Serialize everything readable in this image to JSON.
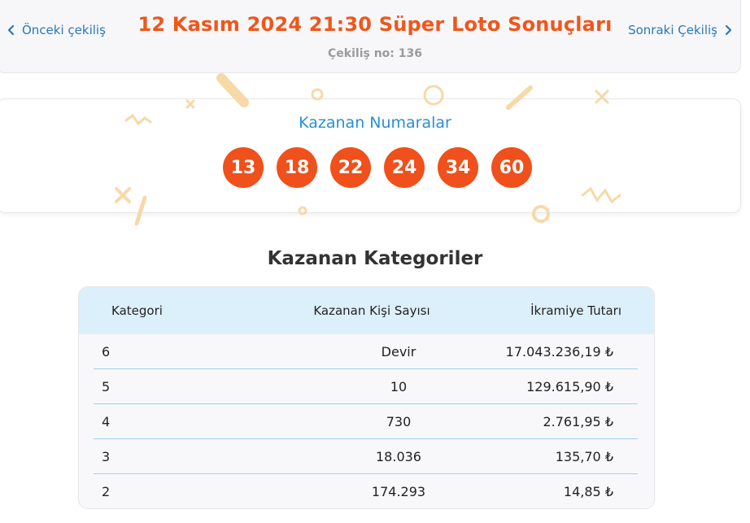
{
  "header": {
    "prev_label": "Önceki çekiliş",
    "next_label": "Sonraki Çekiliş",
    "title": "12 Kasım 2024 21:30 Süper Loto Sonuçları",
    "draw_no": "Çekiliş no: 136"
  },
  "winning_numbers": {
    "title": "Kazanan Numaralar",
    "balls": [
      "13",
      "18",
      "22",
      "24",
      "34",
      "60"
    ]
  },
  "categories": {
    "title": "Kazanan Kategoriler",
    "columns": [
      "Kategori",
      "Kazanan Kişi Sayısı",
      "İkramiye Tutarı"
    ],
    "rows": [
      {
        "category": "6",
        "winners": "Devir",
        "prize": "17.043.236,19 ₺"
      },
      {
        "category": "5",
        "winners": "10",
        "prize": "129.615,90 ₺"
      },
      {
        "category": "4",
        "winners": "730",
        "prize": "2.761,95 ₺"
      },
      {
        "category": "3",
        "winners": "18.036",
        "prize": "135,70 ₺"
      },
      {
        "category": "2",
        "winners": "174.293",
        "prize": "14,85 ₺"
      }
    ]
  },
  "colors": {
    "accent": "#f0561a",
    "ball": "#f0501b",
    "link": "#2a78b8",
    "table_header": "#dcf0fb"
  }
}
